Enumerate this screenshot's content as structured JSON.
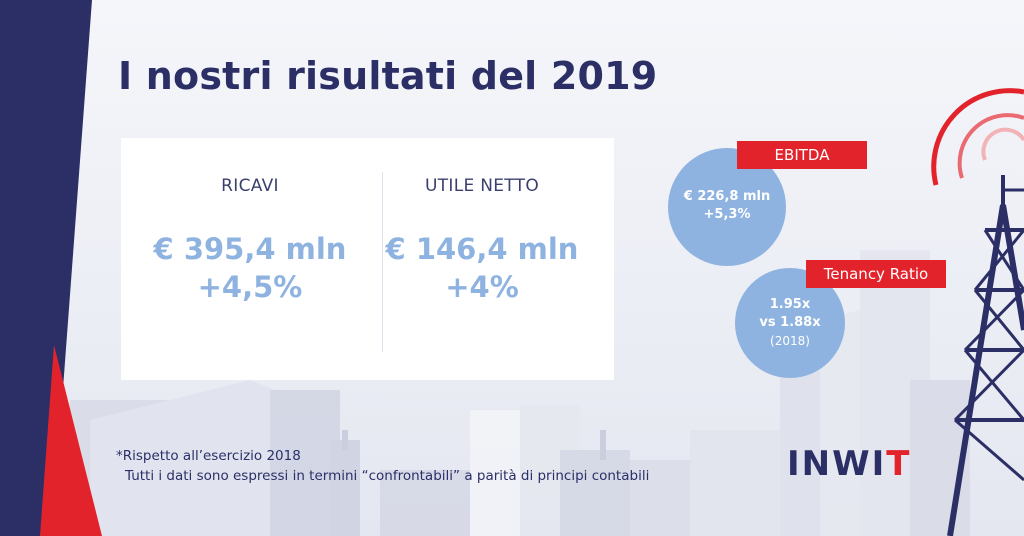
{
  "title": "I nostri risultati del 2019",
  "kpis": [
    {
      "label": "RICAVI",
      "value": "€ 395,4 mln",
      "growth": "+4,5%"
    },
    {
      "label": "UTILE NETTO",
      "value": "€ 146,4 mln",
      "growth": "+4%"
    }
  ],
  "ebitda": {
    "tag": "EBITDA",
    "value": "€ 226,8 mln",
    "growth": "+5,3%"
  },
  "tenancy": {
    "tag": "Tenancy Ratio",
    "value": "1.95x",
    "compare": "vs 1.88x",
    "year": "(2018)"
  },
  "notes": {
    "line1": "*Rispetto all’esercizio 2018",
    "line2": "Tutti i dati sono espressi in termini “confrontabili” a parità di principi contabili"
  },
  "logo": {
    "main": "INWI",
    "accent": "T"
  },
  "colors": {
    "navy": "#2b2f66",
    "red": "#e3232b",
    "light_blue": "#8fb3e0"
  }
}
